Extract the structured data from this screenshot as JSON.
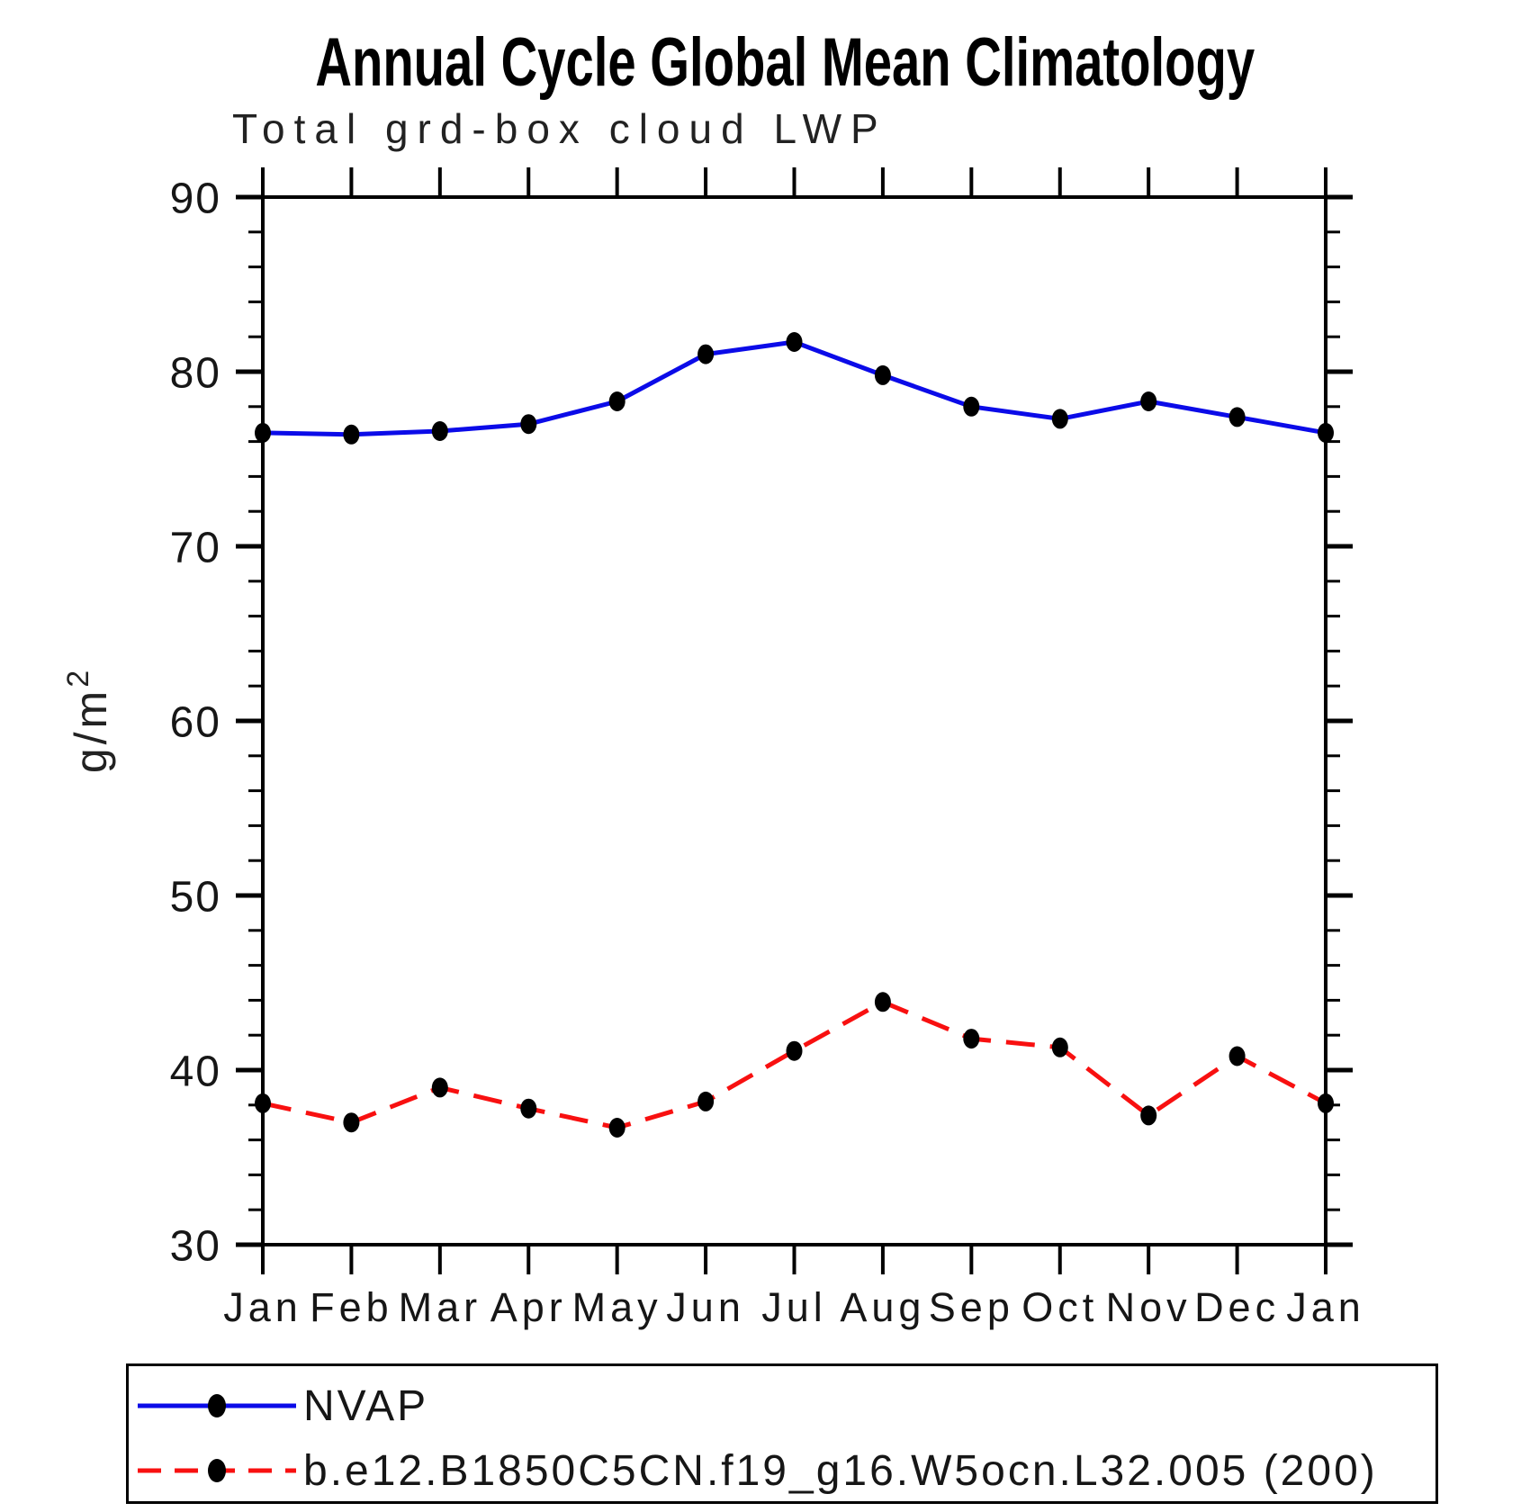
{
  "chart_data": {
    "type": "line",
    "title": "Annual Cycle Global Mean Climatology",
    "subtitle": "Total grd-box cloud LWP",
    "ylabel": "g/m²",
    "ylim": [
      30,
      90
    ],
    "yticks": [
      30,
      40,
      50,
      60,
      70,
      80,
      90
    ],
    "ytick_minor_interval": 2,
    "grid": false,
    "legend_position": "bottom",
    "categories": [
      "Jan",
      "Feb",
      "Mar",
      "Apr",
      "May",
      "Jun",
      "Jul",
      "Aug",
      "Sep",
      "Oct",
      "Nov",
      "Dec",
      "Jan"
    ],
    "series": [
      {
        "name": "NVAP",
        "color": "#0b0be8",
        "line_style": "solid",
        "marker": "filled-circle",
        "marker_color": "#000000",
        "values": [
          76.5,
          76.4,
          76.6,
          77.0,
          78.3,
          81.0,
          81.7,
          79.8,
          78.0,
          77.3,
          78.3,
          77.4,
          76.5
        ]
      },
      {
        "name": "b.e12.B1850C5CN.f19_g16.W5ocn.L32.005 (200)",
        "color": "#f81010",
        "line_style": "dashed",
        "marker": "filled-circle",
        "marker_color": "#000000",
        "values": [
          38.1,
          37.0,
          39.0,
          37.8,
          36.7,
          38.2,
          41.1,
          43.9,
          41.8,
          41.3,
          37.4,
          40.8,
          38.1
        ]
      }
    ]
  }
}
